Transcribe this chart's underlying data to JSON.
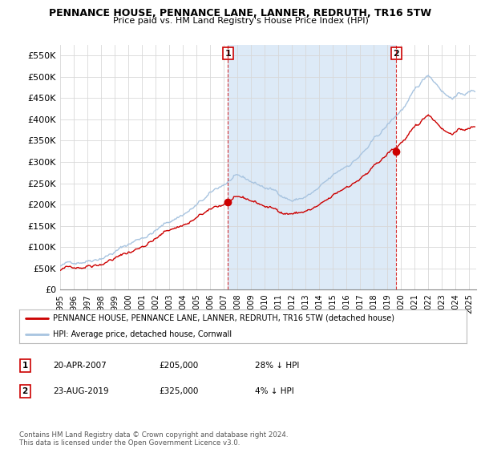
{
  "title": "PENNANCE HOUSE, PENNANCE LANE, LANNER, REDRUTH, TR16 5TW",
  "subtitle": "Price paid vs. HM Land Registry's House Price Index (HPI)",
  "xlim_start": 1995.0,
  "xlim_end": 2025.5,
  "ylim_min": 0,
  "ylim_max": 575000,
  "yticks": [
    0,
    50000,
    100000,
    150000,
    200000,
    250000,
    300000,
    350000,
    400000,
    450000,
    500000,
    550000
  ],
  "ytick_labels": [
    "£0",
    "£50K",
    "£100K",
    "£150K",
    "£200K",
    "£250K",
    "£300K",
    "£350K",
    "£400K",
    "£450K",
    "£500K",
    "£550K"
  ],
  "xticks": [
    1995,
    1996,
    1997,
    1998,
    1999,
    2000,
    2001,
    2002,
    2003,
    2004,
    2005,
    2006,
    2007,
    2008,
    2009,
    2010,
    2011,
    2012,
    2013,
    2014,
    2015,
    2016,
    2017,
    2018,
    2019,
    2020,
    2021,
    2022,
    2023,
    2024,
    2025
  ],
  "hpi_color": "#a8c4e0",
  "price_color": "#cc0000",
  "vline_color": "#cc0000",
  "fill_color": "#ddeaf7",
  "transaction1_x": 2007.3,
  "transaction1_y": 205000,
  "transaction2_x": 2019.65,
  "transaction2_y": 325000,
  "legend_label1": "PENNANCE HOUSE, PENNANCE LANE, LANNER, REDRUTH, TR16 5TW (detached house)",
  "legend_label2": "HPI: Average price, detached house, Cornwall",
  "table_row1": [
    "1",
    "20-APR-2007",
    "£205,000",
    "28% ↓ HPI"
  ],
  "table_row2": [
    "2",
    "23-AUG-2019",
    "£325,000",
    "4% ↓ HPI"
  ],
  "footnote": "Contains HM Land Registry data © Crown copyright and database right 2024.\nThis data is licensed under the Open Government Licence v3.0.",
  "bg_color": "#ffffff",
  "grid_color": "#d8d8d8"
}
